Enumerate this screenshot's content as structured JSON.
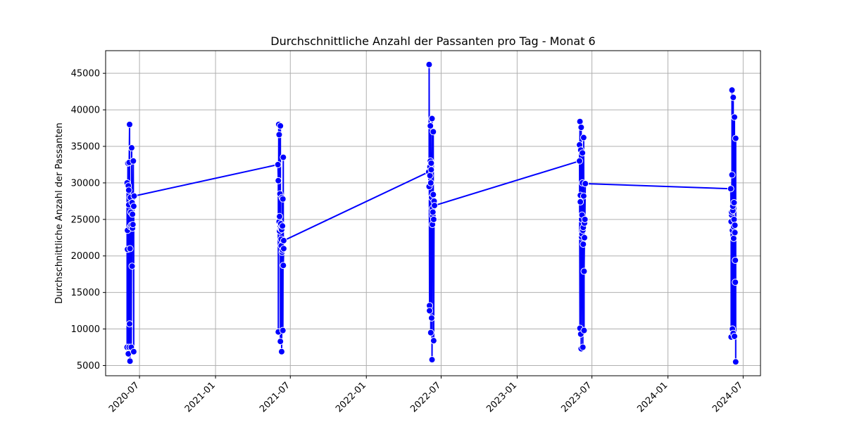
{
  "chart_data": {
    "type": "line",
    "title": "Durchschnittliche Anzahl der Passanten pro Tag - Monat 6",
    "xlabel": "",
    "ylabel": "Durchschnittliche Anzahl der Passanten",
    "xlim": [
      "2020-04-10",
      "2024-08-12"
    ],
    "ylim": [
      3600,
      48100
    ],
    "x_ticks": [
      "2020-07",
      "2021-01",
      "2021-07",
      "2022-01",
      "2022-07",
      "2023-01",
      "2023-07",
      "2024-01",
      "2024-07"
    ],
    "y_ticks": [
      5000,
      10000,
      15000,
      20000,
      25000,
      30000,
      35000,
      40000,
      45000
    ],
    "grid": true,
    "colors": {
      "line": "#0000ff",
      "marker_fill": "#0000ff",
      "marker_edge": "#ffffff",
      "grid": "#b0b0b0"
    },
    "series": [
      {
        "points": [
          [
            "2020-06-01",
            30000
          ],
          [
            "2020-06-01",
            7500
          ],
          [
            "2020-06-02",
            23500
          ],
          [
            "2020-06-02",
            20900
          ],
          [
            "2020-06-03",
            32700
          ],
          [
            "2020-06-04",
            29600
          ],
          [
            "2020-06-04",
            6600
          ],
          [
            "2020-06-05",
            27000
          ],
          [
            "2020-06-05",
            29000
          ],
          [
            "2020-06-06",
            7500
          ],
          [
            "2020-06-06",
            32800
          ],
          [
            "2020-06-07",
            38000
          ],
          [
            "2020-06-07",
            10700
          ],
          [
            "2020-06-08",
            5600
          ],
          [
            "2020-06-08",
            21000
          ],
          [
            "2020-06-09",
            28000
          ],
          [
            "2020-06-09",
            24000
          ],
          [
            "2020-06-10",
            26000
          ],
          [
            "2020-06-11",
            24200
          ],
          [
            "2020-06-11",
            7500
          ],
          [
            "2020-06-12",
            34800
          ],
          [
            "2020-06-13",
            18600
          ],
          [
            "2020-06-13",
            27300
          ],
          [
            "2020-06-14",
            25700
          ],
          [
            "2020-06-14",
            23800
          ],
          [
            "2020-06-15",
            24300
          ],
          [
            "2020-06-16",
            33000
          ],
          [
            "2020-06-17",
            6900
          ],
          [
            "2020-06-17",
            26800
          ],
          [
            "2020-06-18",
            28200
          ],
          [
            "2021-06-01",
            32500
          ],
          [
            "2021-06-02",
            30300
          ],
          [
            "2021-06-02",
            9600
          ],
          [
            "2021-06-03",
            38000
          ],
          [
            "2021-06-04",
            36600
          ],
          [
            "2021-06-04",
            24700
          ],
          [
            "2021-06-05",
            25400
          ],
          [
            "2021-06-05",
            23400
          ],
          [
            "2021-06-06",
            28500
          ],
          [
            "2021-06-07",
            37800
          ],
          [
            "2021-06-07",
            8300
          ],
          [
            "2021-06-08",
            23700
          ],
          [
            "2021-06-08",
            24400
          ],
          [
            "2021-06-09",
            22300
          ],
          [
            "2021-06-09",
            21400
          ],
          [
            "2021-06-10",
            23600
          ],
          [
            "2021-06-10",
            6900
          ],
          [
            "2021-06-11",
            20500
          ],
          [
            "2021-06-11",
            28000
          ],
          [
            "2021-06-12",
            24100
          ],
          [
            "2021-06-12",
            20800
          ],
          [
            "2021-06-13",
            27800
          ],
          [
            "2021-06-13",
            9800
          ],
          [
            "2021-06-14",
            33500
          ],
          [
            "2021-06-14",
            18700
          ],
          [
            "2021-06-15",
            21000
          ],
          [
            "2021-06-15",
            22100
          ],
          [
            "2022-06-01",
            31500
          ],
          [
            "2022-06-02",
            29500
          ],
          [
            "2022-06-02",
            46200
          ],
          [
            "2022-06-03",
            13200
          ],
          [
            "2022-06-03",
            12500
          ],
          [
            "2022-06-04",
            31000
          ],
          [
            "2022-06-04",
            32200
          ],
          [
            "2022-06-05",
            33000
          ],
          [
            "2022-06-05",
            37800
          ],
          [
            "2022-06-06",
            9500
          ],
          [
            "2022-06-06",
            30000
          ],
          [
            "2022-06-07",
            32700
          ],
          [
            "2022-06-07",
            31800
          ],
          [
            "2022-06-08",
            11500
          ],
          [
            "2022-06-08",
            28000
          ],
          [
            "2022-06-09",
            38800
          ],
          [
            "2022-06-09",
            5800
          ],
          [
            "2022-06-10",
            24300
          ],
          [
            "2022-06-10",
            26500
          ],
          [
            "2022-06-11",
            25500
          ],
          [
            "2022-06-11",
            26000
          ],
          [
            "2022-06-12",
            37000
          ],
          [
            "2022-06-12",
            28400
          ],
          [
            "2022-06-13",
            25000
          ],
          [
            "2022-06-13",
            8400
          ],
          [
            "2022-06-14",
            27500
          ],
          [
            "2022-06-15",
            26900
          ],
          [
            "2023-06-01",
            33000
          ],
          [
            "2023-06-01",
            35200
          ],
          [
            "2023-06-02",
            10100
          ],
          [
            "2023-06-02",
            38400
          ],
          [
            "2023-06-03",
            28300
          ],
          [
            "2023-06-03",
            27400
          ],
          [
            "2023-06-04",
            9300
          ],
          [
            "2023-06-04",
            34500
          ],
          [
            "2023-06-05",
            37600
          ],
          [
            "2023-06-05",
            7300
          ],
          [
            "2023-06-06",
            22600
          ],
          [
            "2023-06-06",
            25000
          ],
          [
            "2023-06-07",
            23000
          ],
          [
            "2023-06-07",
            25600
          ],
          [
            "2023-06-08",
            30000
          ],
          [
            "2023-06-08",
            34100
          ],
          [
            "2023-06-09",
            7500
          ],
          [
            "2023-06-09",
            23500
          ],
          [
            "2023-06-10",
            21600
          ],
          [
            "2023-06-10",
            23900
          ],
          [
            "2023-06-11",
            28200
          ],
          [
            "2023-06-11",
            36200
          ],
          [
            "2023-06-12",
            9800
          ],
          [
            "2023-06-12",
            17900
          ],
          [
            "2023-06-13",
            22500
          ],
          [
            "2023-06-13",
            24500
          ],
          [
            "2023-06-14",
            25000
          ],
          [
            "2023-06-15",
            29900
          ],
          [
            "2024-06-01",
            29200
          ],
          [
            "2024-06-02",
            24700
          ],
          [
            "2024-06-02",
            8900
          ],
          [
            "2024-06-03",
            25600
          ],
          [
            "2024-06-03",
            26000
          ],
          [
            "2024-06-04",
            31100
          ],
          [
            "2024-06-04",
            42700
          ],
          [
            "2024-06-05",
            23500
          ],
          [
            "2024-06-05",
            10000
          ],
          [
            "2024-06-06",
            26200
          ],
          [
            "2024-06-06",
            26800
          ],
          [
            "2024-06-07",
            41700
          ],
          [
            "2024-06-07",
            9400
          ],
          [
            "2024-06-08",
            22400
          ],
          [
            "2024-06-08",
            24000
          ],
          [
            "2024-06-09",
            25000
          ],
          [
            "2024-06-09",
            27300
          ],
          [
            "2024-06-10",
            39000
          ],
          [
            "2024-06-10",
            9000
          ],
          [
            "2024-06-11",
            23200
          ],
          [
            "2024-06-11",
            24200
          ],
          [
            "2024-06-12",
            19400
          ],
          [
            "2024-06-12",
            16400
          ],
          [
            "2024-06-13",
            36100
          ],
          [
            "2024-06-13",
            5500
          ]
        ]
      }
    ]
  }
}
